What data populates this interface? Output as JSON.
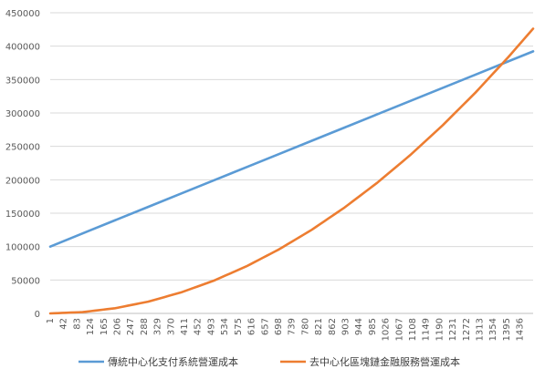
{
  "chart_data": {
    "type": "line",
    "title": "",
    "xlabel": "",
    "ylabel": "",
    "ylim": [
      0,
      450000
    ],
    "y_ticks": [
      0,
      50000,
      100000,
      150000,
      200000,
      250000,
      300000,
      350000,
      400000,
      450000
    ],
    "y_tick_labels": [
      "0",
      "50000",
      "100000",
      "150000",
      "200000",
      "250000",
      "300000",
      "350000",
      "400000",
      "450000"
    ],
    "x_tick_labels": [
      "1",
      "42",
      "83",
      "124",
      "165",
      "206",
      "247",
      "288",
      "329",
      "370",
      "411",
      "452",
      "493",
      "534",
      "575",
      "616",
      "657",
      "698",
      "739",
      "780",
      "821",
      "862",
      "903",
      "944",
      "985",
      "1026",
      "1067",
      "1108",
      "1149",
      "1190",
      "1231",
      "1272",
      "1313",
      "1354",
      "1395",
      "1436"
    ],
    "xlim": [
      1,
      1476
    ],
    "grid": true,
    "legend_position": "bottom",
    "series": [
      {
        "name": "傳統中心化支付系統營運成本",
        "color": "#5B9BD5",
        "x": [
          1,
          100,
          200,
          300,
          400,
          500,
          600,
          700,
          800,
          900,
          1000,
          1100,
          1200,
          1300,
          1400,
          1476
        ],
        "y": [
          100000,
          119800,
          139600,
          159400,
          179200,
          199000,
          218800,
          238600,
          258400,
          278200,
          298000,
          317800,
          337600,
          357400,
          377200,
          392200
        ]
      },
      {
        "name": "去中心化區塊鏈金融服務營運成本",
        "color": "#ED7D31",
        "x": [
          1,
          100,
          200,
          300,
          400,
          500,
          600,
          700,
          800,
          900,
          1000,
          1100,
          1200,
          1300,
          1400,
          1476
        ],
        "y": [
          0,
          1950,
          7800,
          17600,
          31300,
          48900,
          70400,
          95900,
          125200,
          158500,
          195600,
          236700,
          281700,
          330600,
          383500,
          426200
        ]
      }
    ]
  }
}
